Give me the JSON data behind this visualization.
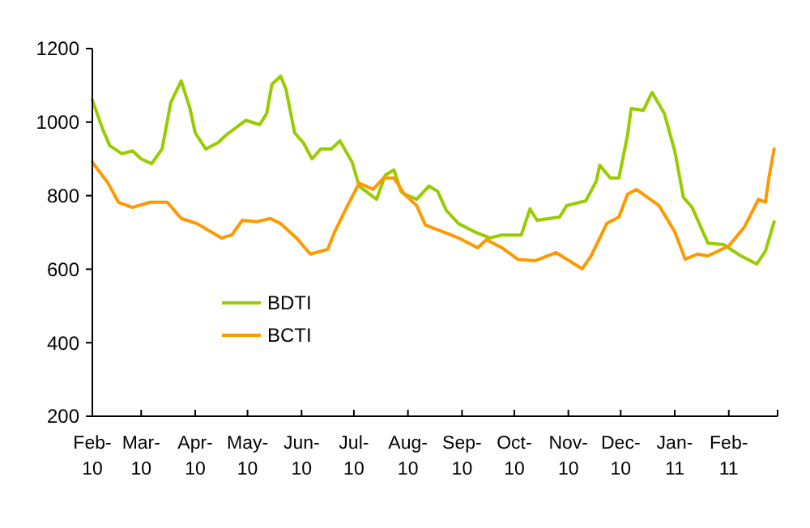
{
  "chart_data": {
    "type": "line",
    "legend": "bottom left",
    "grid": false,
    "line_style": "solid",
    "marker": "none",
    "xlim": [
      "2010-02-01",
      "2011-03-01"
    ],
    "xticks": [
      {
        "value": "2010-02-01",
        "label": "Feb-10"
      },
      {
        "value": "2010-03-01",
        "label": "Mar-10"
      },
      {
        "value": "2010-04-01",
        "label": "Apr-10"
      },
      {
        "value": "2010-05-01",
        "label": "May-10"
      },
      {
        "value": "2010-06-01",
        "label": "Jun-10"
      },
      {
        "value": "2010-07-01",
        "label": "Jul-10"
      },
      {
        "value": "2010-08-01",
        "label": "Aug-10"
      },
      {
        "value": "2010-09-01",
        "label": "Sep-10"
      },
      {
        "value": "2010-10-01",
        "label": "Oct-10"
      },
      {
        "value": "2010-11-01",
        "label": "Nov-10"
      },
      {
        "value": "2010-12-01",
        "label": "Dec-10"
      },
      {
        "value": "2011-01-01",
        "label": "Jan-11"
      },
      {
        "value": "2011-02-01",
        "label": "Feb-11"
      },
      {
        "value": "2011-03-01",
        "label": null
      }
    ],
    "ylim": [
      200,
      1200
    ],
    "yticks": [
      200,
      400,
      600,
      800,
      1000,
      1200
    ],
    "series": [
      {
        "name": "BDTI",
        "color": "#99cc00",
        "x": [
          "2010-02-01",
          "2010-02-07",
          "2010-02-11",
          "2010-02-18",
          "2010-02-24",
          "2010-03-01",
          "2010-03-07",
          "2010-03-13",
          "2010-03-18",
          "2010-03-24",
          "2010-03-29",
          "2010-04-01",
          "2010-04-07",
          "2010-04-14",
          "2010-04-19",
          "2010-04-30",
          "2010-05-08",
          "2010-05-12",
          "2010-05-15",
          "2010-05-20",
          "2010-05-23",
          "2010-05-28",
          "2010-06-02",
          "2010-06-07",
          "2010-06-12",
          "2010-06-18",
          "2010-06-23",
          "2010-06-30",
          "2010-07-04",
          "2010-07-14",
          "2010-07-19",
          "2010-07-24",
          "2010-07-28",
          "2010-07-30",
          "2010-08-06",
          "2010-08-13",
          "2010-08-18",
          "2010-08-23",
          "2010-08-30",
          "2010-09-08",
          "2010-09-17",
          "2010-09-24",
          "2010-10-05",
          "2010-10-10",
          "2010-10-14",
          "2010-10-27",
          "2010-10-31",
          "2010-11-11",
          "2010-11-17",
          "2010-11-19",
          "2010-11-25",
          "2010-11-30",
          "2010-12-05",
          "2010-12-07",
          "2010-12-14",
          "2010-12-19",
          "2010-12-26",
          "2011-01-01",
          "2011-01-06",
          "2011-01-11",
          "2011-01-20",
          "2011-01-29",
          "2011-02-08",
          "2011-02-17",
          "2011-02-22",
          "2011-02-27"
        ],
        "values": [
          1060,
          980,
          936,
          914,
          922,
          900,
          887,
          927,
          1054,
          1112,
          1037,
          971,
          927,
          944,
          966,
          1005,
          993,
          1024,
          1103,
          1125,
          1090,
          971,
          944,
          900,
          927,
          927,
          949,
          891,
          826,
          790,
          856,
          870,
          812,
          804,
          790,
          826,
          812,
          760,
          724,
          702,
          685,
          693,
          693,
          764,
          733,
          742,
          773,
          786,
          839,
          883,
          848,
          848,
          966,
          1037,
          1032,
          1081,
          1024,
          922,
          795,
          768,
          671,
          667,
          636,
          614,
          649,
          729
        ]
      },
      {
        "name": "BCTI",
        "color": "#ff9900",
        "x": [
          "2010-02-01",
          "2010-02-10",
          "2010-02-16",
          "2010-02-24",
          "2010-03-06",
          "2010-03-16",
          "2010-03-24",
          "2010-04-02",
          "2010-04-16",
          "2010-04-22",
          "2010-04-28",
          "2010-05-06",
          "2010-05-14",
          "2010-05-20",
          "2010-05-29",
          "2010-06-06",
          "2010-06-16",
          "2010-06-20",
          "2010-06-26",
          "2010-07-04",
          "2010-07-12",
          "2010-07-18",
          "2010-07-24",
          "2010-07-30",
          "2010-08-06",
          "2010-08-11",
          "2010-08-21",
          "2010-08-30",
          "2010-09-10",
          "2010-09-15",
          "2010-09-24",
          "2010-10-03",
          "2010-10-13",
          "2010-10-25",
          "2010-11-09",
          "2010-11-14",
          "2010-11-23",
          "2010-11-30",
          "2010-12-05",
          "2010-12-10",
          "2010-12-23",
          "2011-01-01",
          "2011-01-07",
          "2011-01-14",
          "2011-01-20",
          "2011-02-01",
          "2011-02-10",
          "2011-02-18",
          "2011-02-22",
          "2011-02-24",
          "2011-02-27"
        ],
        "values": [
          891,
          834,
          782,
          768,
          782,
          782,
          738,
          724,
          685,
          693,
          733,
          729,
          738,
          724,
          685,
          641,
          654,
          702,
          760,
          834,
          817,
          848,
          848,
          804,
          773,
          720,
          702,
          685,
          658,
          680,
          658,
          627,
          623,
          645,
          601,
          636,
          724,
          742,
          804,
          817,
          773,
          702,
          627,
          641,
          636,
          663,
          715,
          790,
          782,
          848,
          927
        ]
      }
    ]
  }
}
